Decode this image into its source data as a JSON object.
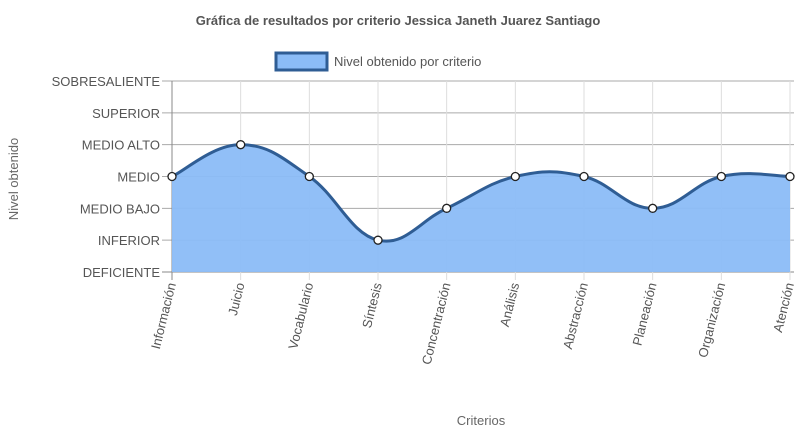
{
  "chart_data": {
    "type": "area",
    "title": "Gráfica de resultados por criterio Jessica Janeth Juarez Santiago",
    "xlabel": "Criterios",
    "ylabel": "Nivel obtenido",
    "y_levels": [
      "DEFICIENTE",
      "INFERIOR",
      "MEDIO BAJO",
      "MEDIO",
      "MEDIO ALTO",
      "SUPERIOR",
      "SOBRESALIENTE"
    ],
    "ylim": [
      0,
      6
    ],
    "categories": [
      "Información",
      "Juicio",
      "Vocabulario",
      "Síntesis",
      "Concentración",
      "Análisis",
      "Abstracción",
      "Planeación",
      "Organización",
      "Atención"
    ],
    "series": [
      {
        "name": "Nivel obtenido por criterio",
        "values": [
          3,
          4,
          3,
          1,
          2,
          3,
          3,
          2,
          3,
          3
        ],
        "fill_color": "#8bbcf7",
        "line_color": "#2f5d94"
      }
    ],
    "legend": "top-center",
    "grid": true
  }
}
